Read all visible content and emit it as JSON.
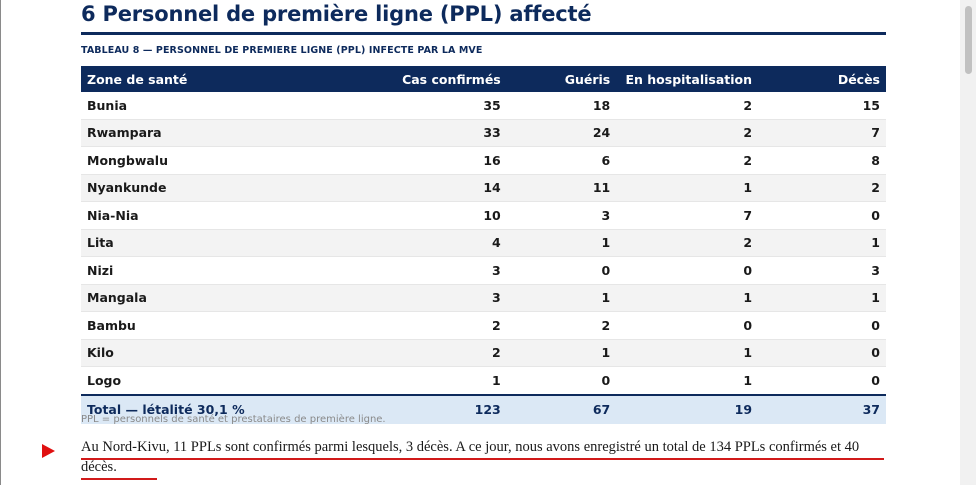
{
  "section": {
    "title": "6 Personnel de première ligne (PPL) affecté"
  },
  "table": {
    "caption": "TABLEAU 8 — PERSONNEL DE PREMIERE LIGNE (PPL) INFECTE PAR LA MVE",
    "headers": [
      "Zone de santé",
      "Cas confirmés",
      "Guéris",
      "En hospitalisation",
      "Décès"
    ],
    "rows": [
      [
        "Bunia",
        "35",
        "18",
        "2",
        "15"
      ],
      [
        "Rwampara",
        "33",
        "24",
        "2",
        "7"
      ],
      [
        "Mongbwalu",
        "16",
        "6",
        "2",
        "8"
      ],
      [
        "Nyankunde",
        "14",
        "11",
        "1",
        "2"
      ],
      [
        "Nia-Nia",
        "10",
        "3",
        "7",
        "0"
      ],
      [
        "Lita",
        "4",
        "1",
        "2",
        "1"
      ],
      [
        "Nizi",
        "3",
        "0",
        "0",
        "3"
      ],
      [
        "Mangala",
        "3",
        "1",
        "1",
        "1"
      ],
      [
        "Bambu",
        "2",
        "2",
        "0",
        "0"
      ],
      [
        "Kilo",
        "2",
        "1",
        "1",
        "0"
      ],
      [
        "Logo",
        "1",
        "0",
        "1",
        "0"
      ]
    ],
    "total": [
      "Total — létalité 30,1 %",
      "123",
      "67",
      "19",
      "37"
    ],
    "note": "PPL = personnels de santé et prestataires de première ligne."
  },
  "paragraph": {
    "text": "Au Nord-Kivu, 11 PPLs sont confirmés parmi lesquels, 3 décès. A ce jour, nous avons enregistré un total de 134 PPLs confirmés et 40 décès."
  },
  "annotation": {
    "marker_icon": "red-arrow-icon",
    "color": "#e01010"
  },
  "colors": {
    "heading": "#0d2a5c",
    "header_bg": "#0d2a5c",
    "total_bg": "#dbe8f5"
  }
}
